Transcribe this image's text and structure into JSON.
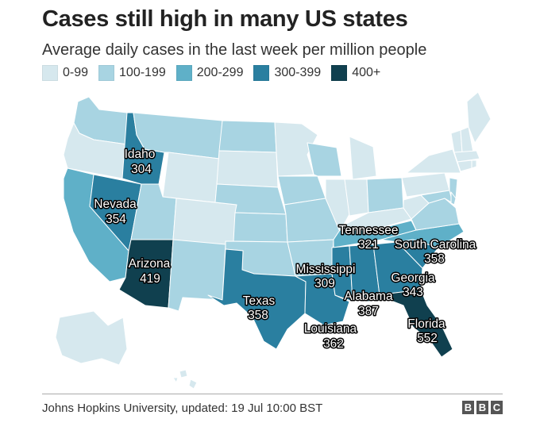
{
  "title": "Cases still high in many US states",
  "subtitle": "Average daily cases in the last week per million people",
  "legend": [
    {
      "label": "0-99",
      "color": "#d6e8ee"
    },
    {
      "label": "100-199",
      "color": "#a8d4e2"
    },
    {
      "label": "200-299",
      "color": "#5fb0c8"
    },
    {
      "label": "300-399",
      "color": "#2a7fa0"
    },
    {
      "label": "400+",
      "color": "#10404f"
    }
  ],
  "labels": {
    "idaho": {
      "name": "Idaho",
      "value": "304"
    },
    "nevada": {
      "name": "Nevada",
      "value": "354"
    },
    "arizona": {
      "name": "Arizona",
      "value": "419"
    },
    "texas": {
      "name": "Texas",
      "value": "358"
    },
    "tennessee": {
      "name": "Tennessee",
      "value": "321"
    },
    "south_carolina": {
      "name": "South Carolina",
      "value": "358"
    },
    "mississippi": {
      "name": "Mississippi",
      "value": "309"
    },
    "georgia": {
      "name": "Georgia",
      "value": "343"
    },
    "alabama": {
      "name": "Alabama",
      "value": "387"
    },
    "louisiana": {
      "name": "Louisiana",
      "value": "362"
    },
    "florida": {
      "name": "Florida",
      "value": "552"
    }
  },
  "source": "Johns Hopkins University, updated: 19 Jul 10:00 BST",
  "logo": [
    "B",
    "B",
    "C"
  ]
}
